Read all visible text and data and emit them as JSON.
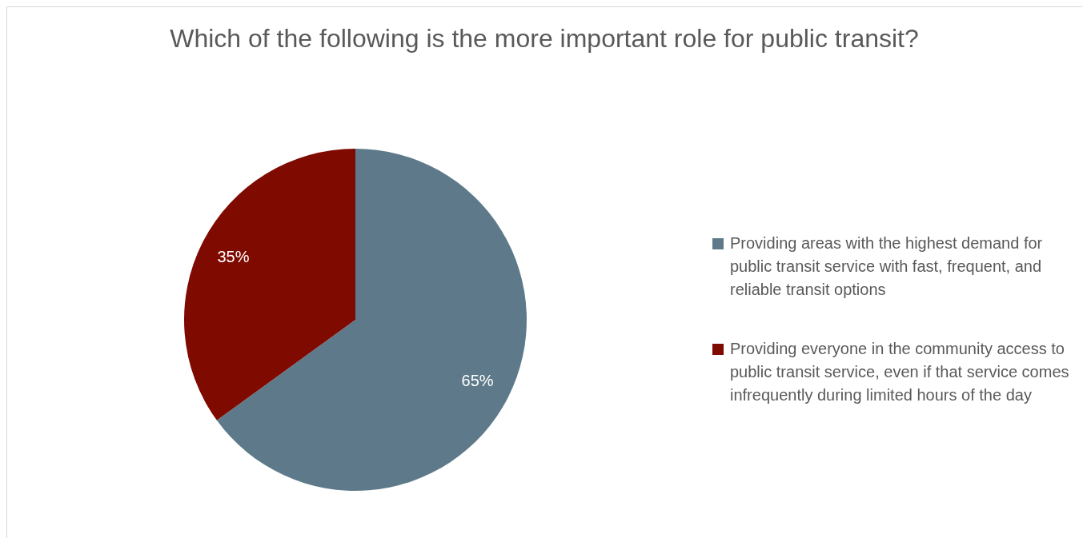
{
  "chart_data": {
    "type": "pie",
    "title": "Which of the following is the more important role for public transit?",
    "categories": [
      "Providing areas with the highest demand for public transit service with fast, frequent, and reliable transit options",
      "Providing everyone in the community access to public transit service, even if that service comes infrequently during limited hours of the day"
    ],
    "values": [
      65,
      35
    ],
    "colors": [
      "#5e7a8a",
      "#7f0a00"
    ],
    "value_labels": [
      "65%",
      "35%"
    ],
    "legend": "right"
  }
}
